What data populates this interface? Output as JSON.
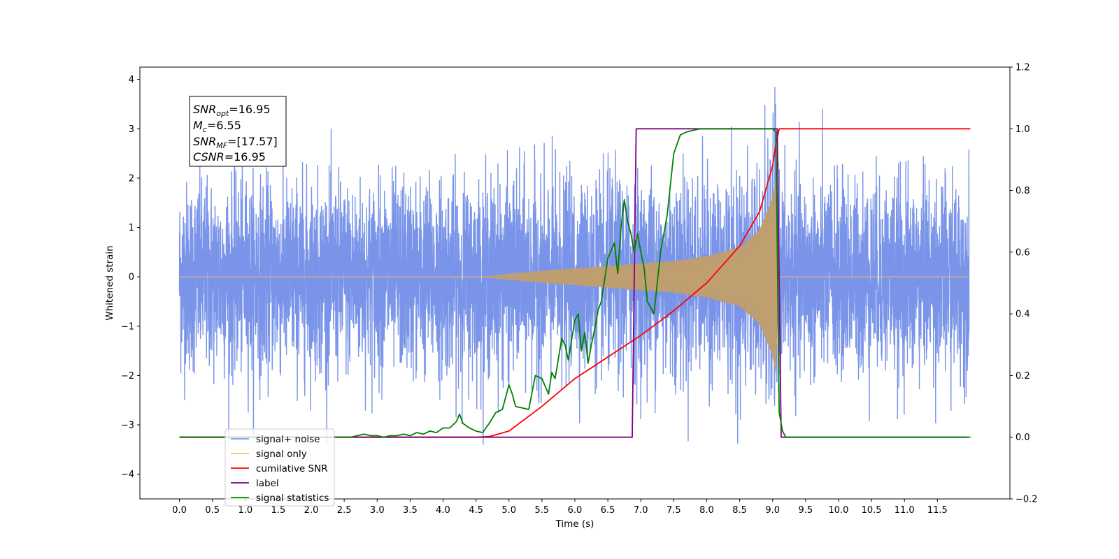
{
  "chart_data": {
    "type": "line",
    "title": "",
    "xlabel": "Time (s)",
    "ylabel": "Whitened strain",
    "ylabel_right": "",
    "xlim": [
      -0.6,
      12.6
    ],
    "ylim": [
      -4.5,
      4.25
    ],
    "ylim_right": [
      -0.2,
      1.2
    ],
    "x_ticks": [
      "0.0",
      "0.5",
      "1.0",
      "1.5",
      "2.0",
      "2.5",
      "3.0",
      "3.5",
      "4.0",
      "4.5",
      "5.0",
      "5.5",
      "6.0",
      "6.5",
      "7.0",
      "7.5",
      "8.0",
      "8.5",
      "9.0",
      "9.5",
      "10.0",
      "10.5",
      "11.0",
      "11.5"
    ],
    "y_ticks_left": [
      "4",
      "3",
      "2",
      "1",
      "0",
      "−1",
      "−2",
      "−3",
      "−4"
    ],
    "y_ticks_right": [
      "1.2",
      "1.0",
      "0.8",
      "0.6",
      "0.4",
      "0.2",
      "0.0",
      "−0.2"
    ],
    "grid": false,
    "legend_placement": "lower-left",
    "annotation": {
      "snr_opt": {
        "base": "SNR",
        "sub": "opt",
        "value": "=16.95"
      },
      "mc": {
        "base": "M",
        "sub": "c",
        "value": "=6.55"
      },
      "snr_mf": {
        "base": "SNR",
        "sub": "MF",
        "value": "=[17.57]"
      },
      "csnr": {
        "base": "CSNR",
        "sub": "",
        "value": "=16.95"
      }
    },
    "series": [
      {
        "name": "signal+ noise",
        "axis": "left",
        "color": "#7994e8",
        "note_range": [
          -3.4,
          3.85
        ]
      },
      {
        "name": "signal only",
        "axis": "left",
        "color": "#ffc15c",
        "x": [
          0,
          4.6,
          5.5,
          6.5,
          7.5,
          8.0,
          8.5,
          8.8,
          9.0,
          9.05,
          9.1,
          12.0
        ],
        "amplitude": [
          0.0,
          0.0,
          0.12,
          0.22,
          0.32,
          0.42,
          0.6,
          0.95,
          1.6,
          2.0,
          0.0,
          0.0
        ]
      },
      {
        "name": "cumilative SNR",
        "axis": "right",
        "color": "#ff0000",
        "x": [
          0.0,
          4.5,
          4.7,
          5.0,
          5.5,
          6.0,
          6.5,
          7.0,
          7.5,
          8.0,
          8.5,
          8.8,
          9.0,
          9.05,
          9.1,
          12.0
        ],
        "y": [
          0.0,
          0.0,
          0.002,
          0.02,
          0.1,
          0.19,
          0.26,
          0.33,
          0.41,
          0.5,
          0.62,
          0.73,
          0.88,
          0.95,
          1.0,
          1.0
        ]
      },
      {
        "name": "label",
        "axis": "right",
        "color": "#800080",
        "x": [
          0.0,
          6.87,
          6.93,
          9.07,
          9.13,
          11.95
        ],
        "y": [
          0.0,
          0.0,
          1.0,
          1.0,
          0.0,
          0.0
        ]
      },
      {
        "name": "signal statistics",
        "axis": "right",
        "color": "#008000",
        "x": [
          0.0,
          2.6,
          2.7,
          2.8,
          2.9,
          3.0,
          3.1,
          3.2,
          3.3,
          3.4,
          3.5,
          3.6,
          3.7,
          3.8,
          3.9,
          4.0,
          4.1,
          4.2,
          4.25,
          4.3,
          4.4,
          4.5,
          4.6,
          4.7,
          4.8,
          4.9,
          5.0,
          5.05,
          5.1,
          5.2,
          5.3,
          5.4,
          5.5,
          5.6,
          5.65,
          5.7,
          5.8,
          5.85,
          5.9,
          6.0,
          6.05,
          6.1,
          6.15,
          6.2,
          6.25,
          6.3,
          6.35,
          6.4,
          6.5,
          6.6,
          6.65,
          6.7,
          6.75,
          6.8,
          6.85,
          6.9,
          6.95,
          7.0,
          7.05,
          7.1,
          7.2,
          7.3,
          7.4,
          7.5,
          7.6,
          7.7,
          7.8,
          7.9,
          8.0,
          8.5,
          9.0,
          9.05,
          9.1,
          9.15,
          9.2,
          12.0
        ],
        "y": [
          0.0,
          0.0,
          0.005,
          0.01,
          0.005,
          0.005,
          0.0,
          0.005,
          0.005,
          0.01,
          0.005,
          0.015,
          0.01,
          0.02,
          0.015,
          0.03,
          0.03,
          0.05,
          0.075,
          0.045,
          0.03,
          0.02,
          0.015,
          0.045,
          0.08,
          0.09,
          0.17,
          0.14,
          0.1,
          0.095,
          0.09,
          0.2,
          0.19,
          0.14,
          0.21,
          0.19,
          0.32,
          0.3,
          0.25,
          0.38,
          0.4,
          0.28,
          0.34,
          0.24,
          0.3,
          0.35,
          0.41,
          0.44,
          0.58,
          0.63,
          0.53,
          0.68,
          0.77,
          0.7,
          0.66,
          0.6,
          0.66,
          0.6,
          0.55,
          0.44,
          0.4,
          0.6,
          0.72,
          0.92,
          0.98,
          0.99,
          0.995,
          1.0,
          1.0,
          1.0,
          1.0,
          0.99,
          0.08,
          0.02,
          0.0,
          0.0
        ]
      }
    ]
  }
}
